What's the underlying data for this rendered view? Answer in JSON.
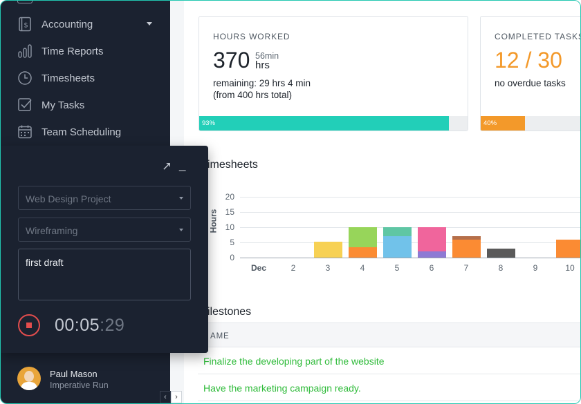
{
  "sidebar": {
    "items": [
      {
        "label": "Accounting",
        "icon": "ledger-book-icon",
        "has_dropdown": true
      },
      {
        "label": "Time Reports",
        "icon": "bar-chart-icon"
      },
      {
        "label": "Timesheets",
        "icon": "clock-icon"
      },
      {
        "label": "My Tasks",
        "icon": "checkbox-icon"
      },
      {
        "label": "Team Scheduling",
        "icon": "calendar-icon"
      }
    ],
    "user": {
      "name": "Paul Mason",
      "org": "Imperative Run"
    }
  },
  "cards": {
    "hours": {
      "title": "HOURS WORKED",
      "value": "370",
      "sub_min": "56min",
      "sub_unit": "hrs",
      "line1": "remaining: 29 hrs 4 min",
      "line2": "(from 400 hrs total)",
      "progress": 0.93,
      "progress_label": "93%",
      "color": "#22cfb8"
    },
    "tasks": {
      "title": "COMPLETED TASKS",
      "value": "12 / 30",
      "line1": "no overdue tasks",
      "progress": 0.4,
      "progress_label": "40%",
      "color": "#f3992a"
    }
  },
  "timesheets": {
    "title": "imesheets"
  },
  "chart_data": {
    "type": "bar",
    "stacked": true,
    "ylabel": "Hours",
    "ylim": [
      0,
      20
    ],
    "yticks": [
      "20",
      "15",
      "10",
      "5",
      "0"
    ],
    "categories": [
      "Dec",
      "2",
      "3",
      "4",
      "5",
      "6",
      "7",
      "8",
      "9",
      "10"
    ],
    "stacks": [
      {
        "category": "3",
        "segments": [
          {
            "value": 5.3,
            "color": "#f7d154"
          }
        ]
      },
      {
        "category": "4",
        "segments": [
          {
            "value": 3.5,
            "color": "#fb8b33"
          },
          {
            "value": 6.5,
            "color": "#97d55a"
          }
        ]
      },
      {
        "category": "5",
        "segments": [
          {
            "value": 7.0,
            "color": "#71c2ea"
          },
          {
            "value": 3.0,
            "color": "#5fc6a4"
          }
        ]
      },
      {
        "category": "6",
        "segments": [
          {
            "value": 2.0,
            "color": "#8e7ad4"
          },
          {
            "value": 8.0,
            "color": "#f0659c"
          }
        ]
      },
      {
        "category": "7",
        "segments": [
          {
            "value": 6.0,
            "color": "#fb8b33"
          },
          {
            "value": 1.0,
            "color": "#b56f4a"
          }
        ]
      },
      {
        "category": "8",
        "segments": [
          {
            "value": 3.0,
            "color": "#5a5a5a"
          }
        ]
      },
      {
        "category": "10",
        "segments": [
          {
            "value": 6.0,
            "color": "#fb8b33"
          }
        ]
      }
    ],
    "grid": true
  },
  "milestones": {
    "title": "ilestones",
    "column": "AME",
    "rows": [
      {
        "name": "Finalize the developing part of the website"
      },
      {
        "name": "Have the marketing campaign ready."
      }
    ]
  },
  "timer": {
    "project": "Web Design Project",
    "task": "Wireframing",
    "notes": "first draft",
    "time_main": "00:05",
    "time_sec": ":29",
    "expand_glyph": "↗",
    "minimize_glyph": "_"
  }
}
